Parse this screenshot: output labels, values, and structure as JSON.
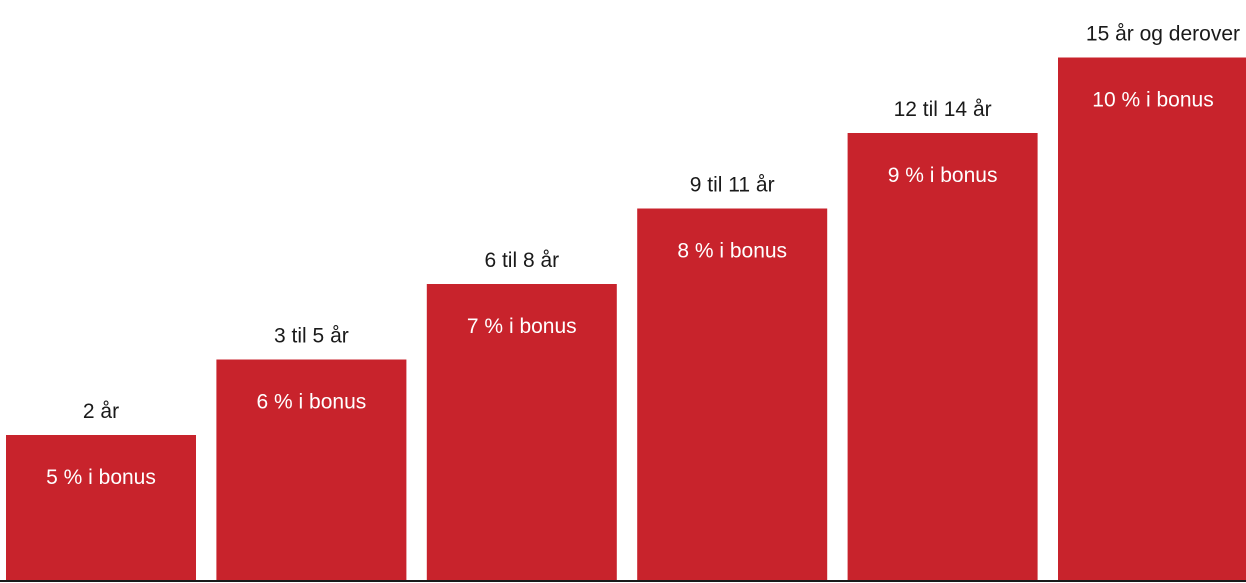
{
  "chart_data": {
    "type": "bar",
    "categories": [
      "2 år",
      "3 til 5 år",
      "6 til 8 år",
      "9 til 11 år",
      "12 til 14 år",
      "15 år og derover"
    ],
    "values": [
      5,
      6,
      7,
      8,
      9,
      10
    ],
    "value_labels": [
      "5 % i bonus",
      "6 % i bonus",
      "7 % i bonus",
      "8 % i bonus",
      "9 % i bonus",
      "10 % i bonus"
    ],
    "bar_color": "#C8232C",
    "baseline_color": "#1a1a1a",
    "grid": false,
    "legend": "none"
  }
}
